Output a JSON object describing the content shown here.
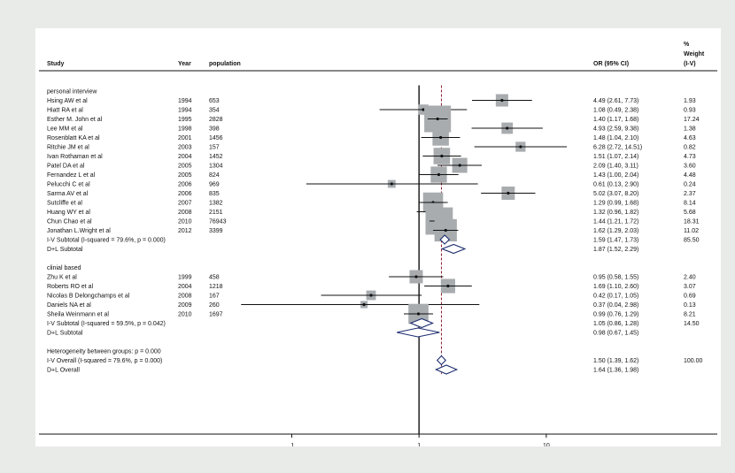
{
  "chart_data": {
    "type": "forest",
    "headers": {
      "study": "Study",
      "year": "Year",
      "population": "population",
      "or_ci": "OR (95% CI)",
      "weight_lines": [
        "%",
        "Weight",
        "(I-V)"
      ]
    },
    "x_scale": "log",
    "x_ticks": [
      {
        "value": 0.1,
        "label": ".1"
      },
      {
        "value": 1,
        "label": "1"
      },
      {
        "value": 10,
        "label": "10"
      }
    ],
    "xlim": [
      0.028,
      17
    ],
    "null_line": 1,
    "overall_line": 1.5,
    "colors": {
      "box": "#a8acaf",
      "diamond": "#1b2c6f",
      "overall_line": "#8b1f2e",
      "text": "#111111"
    },
    "groups": [
      {
        "name": "personal interview",
        "studies": [
          {
            "study": "Hsing AW et al",
            "year": "1994",
            "population": "653",
            "or": 4.49,
            "lo": 2.61,
            "hi": 7.73,
            "ci_text": "4.49 (2.61, 7.73)",
            "weight": "1.93"
          },
          {
            "study": "Hiatt RA et al",
            "year": "1994",
            "population": "354",
            "or": 1.08,
            "lo": 0.49,
            "hi": 2.38,
            "ci_text": "1.08 (0.49, 2.38)",
            "weight": "0.93"
          },
          {
            "study": "Esther M. John et al",
            "year": "1995",
            "population": "2828",
            "or": 1.4,
            "lo": 1.17,
            "hi": 1.68,
            "ci_text": "1.40 (1.17, 1.68)",
            "weight": "17.24"
          },
          {
            "study": "Lee MM et al",
            "year": "1998",
            "population": "398",
            "or": 4.93,
            "lo": 2.59,
            "hi": 9.38,
            "ci_text": "4.93 (2.59, 9.38)",
            "weight": "1.38"
          },
          {
            "study": "Rosenblatt KA et al",
            "year": "2001",
            "population": "1456",
            "or": 1.48,
            "lo": 1.04,
            "hi": 2.1,
            "ci_text": "1.48 (1.04, 2.10)",
            "weight": "4.63"
          },
          {
            "study": "Ritchie JM et al",
            "year": "2003",
            "population": "157",
            "or": 6.28,
            "lo": 2.72,
            "hi": 14.51,
            "ci_text": "6.28 (2.72, 14.51)",
            "weight": "0.82"
          },
          {
            "study": "Ivan Rothaman et al",
            "year": "2004",
            "population": "1452",
            "or": 1.51,
            "lo": 1.07,
            "hi": 2.14,
            "ci_text": "1.51 (1.07, 2.14)",
            "weight": "4.73"
          },
          {
            "study": "Patel DA et al",
            "year": "2005",
            "population": "1304",
            "or": 2.09,
            "lo": 1.4,
            "hi": 3.11,
            "ci_text": "2.09 (1.40, 3.11)",
            "weight": "3.60"
          },
          {
            "study": "Fernandez L et al",
            "year": "2005",
            "population": "824",
            "or": 1.43,
            "lo": 1.0,
            "hi": 2.04,
            "ci_text": "1.43 (1.00, 2.04)",
            "weight": "4.48"
          },
          {
            "study": "Pelucchi C et al",
            "year": "2006",
            "population": "969",
            "or": 0.61,
            "lo": 0.13,
            "hi": 2.9,
            "ci_text": "0.61 (0.13, 2.90)",
            "weight": "0.24"
          },
          {
            "study": "Sarma AV et al",
            "year": "2006",
            "population": "835",
            "or": 5.02,
            "lo": 3.07,
            "hi": 8.2,
            "ci_text": "5.02 (3.07, 8.20)",
            "weight": "2.37"
          },
          {
            "study": "Sutcliffe et al",
            "year": "2007",
            "population": "1382",
            "or": 1.29,
            "lo": 0.99,
            "hi": 1.68,
            "ci_text": "1.29 (0.99, 1.68)",
            "weight": "8.14"
          },
          {
            "study": "Huang WY et al",
            "year": "2008",
            "population": "2151",
            "or": 1.32,
            "lo": 0.96,
            "hi": 1.82,
            "ci_text": "1.32 (0.96, 1.82)",
            "weight": "5.68"
          },
          {
            "study": "Chun Chao et al",
            "year": "2010",
            "population": "76943",
            "or": 1.44,
            "lo": 1.21,
            "hi": 1.72,
            "ci_text": "1.44 (1.21, 1.72)",
            "weight": "18.31"
          },
          {
            "study": "Jonathan L.Wright et al",
            "year": "2012",
            "population": "3399",
            "or": 1.62,
            "lo": 1.29,
            "hi": 2.03,
            "ci_text": "1.62 (1.29, 2.03)",
            "weight": "11.02"
          }
        ],
        "subtotals": [
          {
            "label": "I-V Subtotal  (I-squared = 79.6%, p = 0.000)",
            "or": 1.59,
            "lo": 1.47,
            "hi": 1.73,
            "ci_text": "1.59 (1.47, 1.73)",
            "weight": "85.50"
          },
          {
            "label": "D+L Subtotal",
            "or": 1.87,
            "lo": 1.52,
            "hi": 2.29,
            "ci_text": "1.87 (1.52, 2.29)",
            "weight": ""
          }
        ]
      },
      {
        "name": "clinial based",
        "studies": [
          {
            "study": "Zhu K et al",
            "year": "1999",
            "population": "458",
            "or": 0.95,
            "lo": 0.58,
            "hi": 1.55,
            "ci_text": "0.95 (0.58, 1.55)",
            "weight": "2.40"
          },
          {
            "study": "Roberts RO et al",
            "year": "2004",
            "population": "1218",
            "or": 1.69,
            "lo": 1.1,
            "hi": 2.6,
            "ci_text": "1.69 (1.10, 2.60)",
            "weight": "3.07"
          },
          {
            "study": "Nicolas B Delongchamps et al",
            "year": "2008",
            "population": "167",
            "or": 0.42,
            "lo": 0.17,
            "hi": 1.05,
            "ci_text": "0.42 (0.17, 1.05)",
            "weight": "0.69"
          },
          {
            "study": "Daniels NA et al",
            "year": "2009",
            "population": "260",
            "or": 0.37,
            "lo": 0.04,
            "hi": 2.98,
            "ci_text": "0.37 (0.04, 2.98)",
            "weight": "0.13"
          },
          {
            "study": "Sheila Weinmann et al",
            "year": "2010",
            "population": "1697",
            "or": 0.99,
            "lo": 0.76,
            "hi": 1.29,
            "ci_text": "0.99 (0.76, 1.29)",
            "weight": "8.21"
          }
        ],
        "subtotals": [
          {
            "label": "I-V Subtotal  (I-squared = 59.5%, p = 0.042)",
            "or": 1.05,
            "lo": 0.86,
            "hi": 1.28,
            "ci_text": "1.05 (0.86, 1.28)",
            "weight": "14.50"
          },
          {
            "label": "D+L Subtotal",
            "or": 0.98,
            "lo": 0.67,
            "hi": 1.45,
            "ci_text": "0.98 (0.67, 1.45)",
            "weight": ""
          }
        ]
      }
    ],
    "heterogeneity_text": "Heterogeneity between groups: p = 0.000",
    "overall": [
      {
        "label": "I-V Overall  (I-squared = 79.6%, p = 0.000)",
        "or": 1.5,
        "lo": 1.39,
        "hi": 1.62,
        "ci_text": "1.50 (1.39, 1.62)",
        "weight": "100.00"
      },
      {
        "label": "D+L Overall",
        "or": 1.64,
        "lo": 1.36,
        "hi": 1.98,
        "ci_text": "1.64 (1.36, 1.98)",
        "weight": ""
      }
    ]
  }
}
